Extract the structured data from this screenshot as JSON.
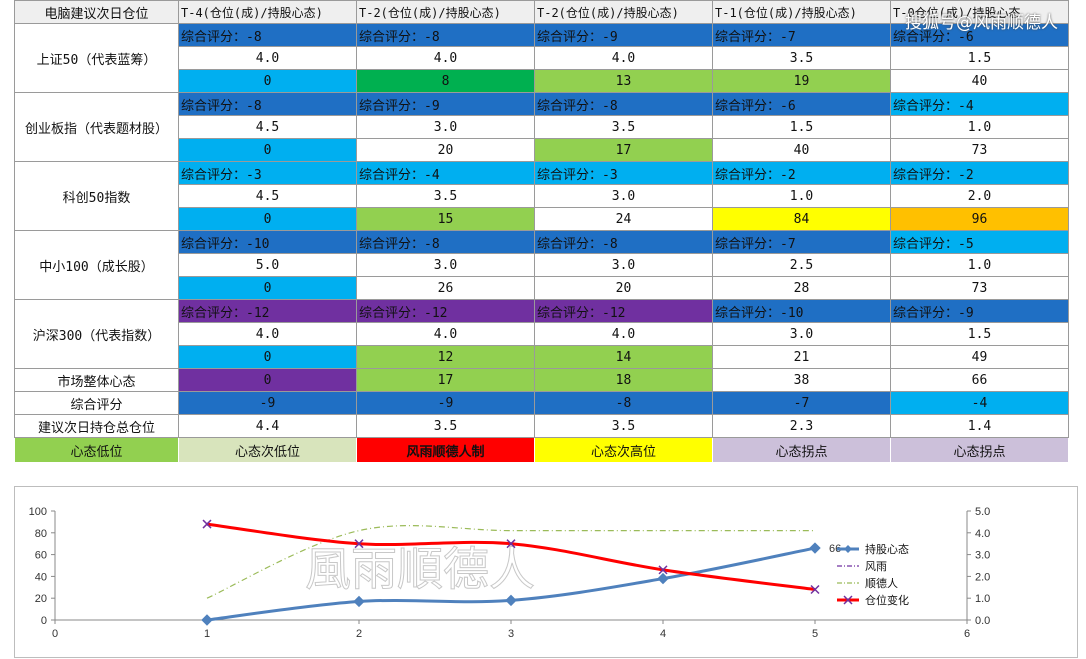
{
  "header": {
    "corner": "电脑建议次日仓位",
    "columns": [
      "T-4(仓位(成)/持股心态)",
      "T-2(仓位(成)/持股心态)",
      "T-2(仓位(成)/持股心态)",
      "T-1(仓位(成)/持股心态)",
      "T-0仓位(成)/持股心态"
    ]
  },
  "watermark": "搜狐号@风雨顺德人",
  "background_watermark": "風雨順德人",
  "indices": [
    {
      "label": "上证50（代表蓝筹）",
      "scores": [
        "综合评分：-8",
        "综合评分：-8",
        "综合评分：-9",
        "综合评分：-7",
        "综合评分：-6"
      ],
      "positions": [
        "4.0",
        "4.0",
        "4.0",
        "3.5",
        "1.5"
      ],
      "counts": [
        "0",
        "8",
        "13",
        "19",
        "40"
      ],
      "score_colors": [
        "#1f6fc4",
        "#1f6fc4",
        "#1f6fc4",
        "#1f6fc4",
        "#1f6fc4"
      ],
      "count_colors": [
        "#00aff0",
        "#00b050",
        "#92d050",
        "#92d050",
        "#ffffff"
      ]
    },
    {
      "label": "创业板指（代表题材股）",
      "scores": [
        "综合评分：-8",
        "综合评分：-9",
        "综合评分：-8",
        "综合评分：-6",
        "综合评分：-4"
      ],
      "positions": [
        "4.5",
        "3.0",
        "3.5",
        "1.5",
        "1.0"
      ],
      "counts": [
        "0",
        "20",
        "17",
        "40",
        "73"
      ],
      "score_colors": [
        "#1f6fc4",
        "#1f6fc4",
        "#1f6fc4",
        "#1f6fc4",
        "#00aff0"
      ],
      "count_colors": [
        "#00aff0",
        "#ffffff",
        "#92d050",
        "#ffffff",
        "#ffffff"
      ]
    },
    {
      "label": "科创50指数",
      "scores": [
        "综合评分：-3",
        "综合评分：-4",
        "综合评分：-3",
        "综合评分：-2",
        "综合评分：-2"
      ],
      "positions": [
        "4.5",
        "3.5",
        "3.0",
        "1.0",
        "2.0"
      ],
      "counts": [
        "0",
        "15",
        "24",
        "84",
        "96"
      ],
      "score_colors": [
        "#00aff0",
        "#00aff0",
        "#00aff0",
        "#00aff0",
        "#00aff0"
      ],
      "count_colors": [
        "#00aff0",
        "#92d050",
        "#ffffff",
        "#ffff00",
        "#ffc000"
      ]
    },
    {
      "label": "中小100（成长股）",
      "scores": [
        "综合评分：-10",
        "综合评分：-8",
        "综合评分：-8",
        "综合评分：-7",
        "综合评分：-5"
      ],
      "positions": [
        "5.0",
        "3.0",
        "3.0",
        "2.5",
        "1.0"
      ],
      "counts": [
        "0",
        "26",
        "20",
        "28",
        "73"
      ],
      "score_colors": [
        "#1f6fc4",
        "#1f6fc4",
        "#1f6fc4",
        "#1f6fc4",
        "#00aff0"
      ],
      "count_colors": [
        "#00aff0",
        "#ffffff",
        "#ffffff",
        "#ffffff",
        "#ffffff"
      ]
    },
    {
      "label": "沪深300（代表指数）",
      "scores": [
        "综合评分：-12",
        "综合评分：-12",
        "综合评分：-12",
        "综合评分：-10",
        "综合评分：-9"
      ],
      "positions": [
        "4.0",
        "4.0",
        "4.0",
        "3.0",
        "1.5"
      ],
      "counts": [
        "0",
        "12",
        "14",
        "21",
        "49"
      ],
      "score_colors": [
        "#7030a0",
        "#7030a0",
        "#7030a0",
        "#1f6fc4",
        "#1f6fc4"
      ],
      "count_colors": [
        "#00aff0",
        "#92d050",
        "#92d050",
        "#ffffff",
        "#ffffff"
      ]
    }
  ],
  "summary": [
    {
      "label": "市场整体心态",
      "values": [
        "0",
        "17",
        "18",
        "38",
        "66"
      ],
      "colors": [
        "#7030a0",
        "#92d050",
        "#92d050",
        "#ffffff",
        "#ffffff"
      ]
    },
    {
      "label": "综合评分",
      "values": [
        "-9",
        "-9",
        "-8",
        "-7",
        "-4"
      ],
      "colors": [
        "#1f6fc4",
        "#1f6fc4",
        "#1f6fc4",
        "#1f6fc4",
        "#00aff0"
      ]
    },
    {
      "label": "建议次日持仓总仓位",
      "values": [
        "4.4",
        "3.5",
        "3.5",
        "2.3",
        "1.4"
      ],
      "colors": [
        "#ffffff",
        "#ffffff",
        "#ffffff",
        "#ffffff",
        "#ffffff"
      ]
    }
  ],
  "legend": [
    {
      "label": "心态低位",
      "color": "#92d050"
    },
    {
      "label": "心态次低位",
      "color": "#d8e4bc"
    },
    {
      "label": "风雨顺德人制",
      "color": "#ff0000"
    },
    {
      "label": "心态次高位",
      "color": "#ffff00"
    },
    {
      "label": "心态拐点",
      "color": "#ccc0da"
    },
    {
      "label": "心态拐点",
      "color": "#ccc0da"
    }
  ],
  "chart_data": {
    "type": "line",
    "x_range": [
      0,
      6
    ],
    "x_ticks": [
      "0",
      "1",
      "2",
      "3",
      "4",
      "5",
      "6"
    ],
    "y_left_range": [
      0,
      100
    ],
    "y_left_ticks": [
      "0",
      "20",
      "40",
      "60",
      "80",
      "100"
    ],
    "y_right_range": [
      0,
      5
    ],
    "y_right_ticks": [
      "0.0",
      "1.0",
      "2.0",
      "3.0",
      "4.0",
      "5.0"
    ],
    "grid": false,
    "legend_position": "right",
    "series": [
      {
        "name": "持股心态",
        "axis": "left",
        "color": "#4f81bd",
        "marker": "diamond",
        "x": [
          1,
          2,
          3,
          4,
          5
        ],
        "y": [
          0,
          17,
          18,
          38,
          66
        ],
        "last_label": "66"
      },
      {
        "name": "风雨",
        "axis": "right",
        "color": "#7030a0",
        "style": "dash-dot",
        "x": [],
        "y": []
      },
      {
        "name": "顺德人",
        "axis": "right",
        "color": "#9bbb59",
        "style": "dash-dot",
        "x": [
          1,
          2,
          3,
          4,
          5
        ],
        "y": [
          1.0,
          4.1,
          4.1,
          4.1,
          4.1
        ]
      },
      {
        "name": "仓位变化",
        "axis": "right",
        "color": "#ff0000",
        "marker": "x",
        "x": [
          1,
          2,
          3,
          4,
          5
        ],
        "y": [
          4.4,
          3.5,
          3.5,
          2.3,
          1.4
        ]
      }
    ]
  }
}
